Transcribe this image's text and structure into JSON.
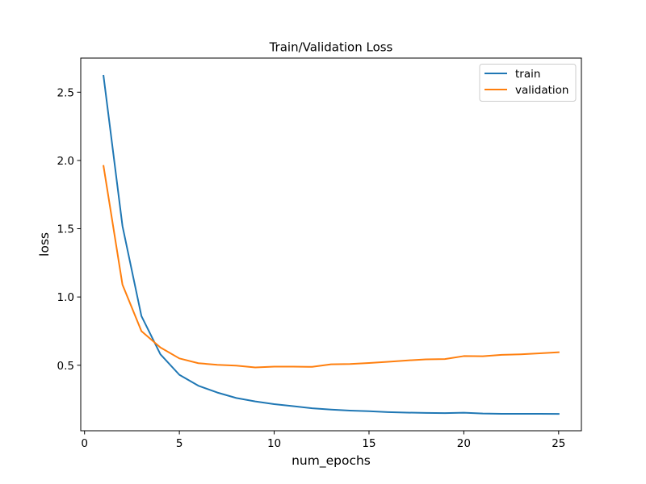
{
  "chart_data": {
    "type": "line",
    "title": "Train/Validation Loss",
    "xlabel": "num_epochs",
    "ylabel": "loss",
    "xlim": [
      -0.2,
      26.2
    ],
    "ylim": [
      0.02,
      2.75
    ],
    "x_ticks": [
      0,
      5,
      10,
      15,
      20,
      25
    ],
    "y_ticks": [
      0.5,
      1.0,
      1.5,
      2.0,
      2.5
    ],
    "x_tick_labels": [
      "0",
      "5",
      "10",
      "15",
      "20",
      "25"
    ],
    "y_tick_labels": [
      "0.5",
      "1.0",
      "1.5",
      "2.0",
      "2.5"
    ],
    "grid": false,
    "legend_position": "upper right",
    "x": [
      1,
      2,
      3,
      4,
      5,
      6,
      7,
      8,
      9,
      10,
      11,
      12,
      13,
      14,
      15,
      16,
      17,
      18,
      19,
      20,
      21,
      22,
      23,
      24,
      25
    ],
    "series": [
      {
        "name": "train",
        "color": "#1f77b4",
        "values": [
          2.62,
          1.52,
          0.86,
          0.58,
          0.43,
          0.35,
          0.3,
          0.26,
          0.235,
          0.215,
          0.2,
          0.185,
          0.175,
          0.168,
          0.163,
          0.157,
          0.153,
          0.151,
          0.149,
          0.152,
          0.146,
          0.144,
          0.144,
          0.144,
          0.143
        ]
      },
      {
        "name": "validation",
        "color": "#ff7f0e",
        "values": [
          1.96,
          1.09,
          0.75,
          0.63,
          0.55,
          0.515,
          0.503,
          0.497,
          0.484,
          0.49,
          0.49,
          0.488,
          0.507,
          0.509,
          0.516,
          0.525,
          0.535,
          0.543,
          0.545,
          0.567,
          0.566,
          0.576,
          0.58,
          0.587,
          0.595
        ]
      }
    ]
  }
}
